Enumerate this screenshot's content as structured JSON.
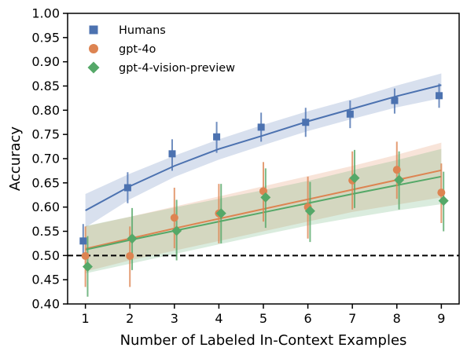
{
  "chart_data": {
    "type": "scatter",
    "xlabel": "Number of Labeled In-Context Examples",
    "ylabel": "Accuracy",
    "xlim": [
      0.6,
      9.4
    ],
    "ylim": [
      0.4,
      1.0
    ],
    "x_ticks": [
      1,
      2,
      3,
      4,
      5,
      6,
      7,
      8,
      9
    ],
    "y_ticks": [
      0.4,
      0.45,
      0.5,
      0.55,
      0.6,
      0.65,
      0.7,
      0.75,
      0.8,
      0.85,
      0.9,
      0.95,
      1.0
    ],
    "y_tick_labels": [
      "0.40",
      "0.45",
      "0.50",
      "0.55",
      "0.60",
      "0.65",
      "0.70",
      "0.75",
      "0.80",
      "0.85",
      "0.90",
      "0.95",
      "1.00"
    ],
    "x_tick_labels": [
      "1",
      "2",
      "3",
      "4",
      "5",
      "6",
      "7",
      "8",
      "9"
    ],
    "grid": false,
    "legend_position": "top-left",
    "reference_line": {
      "y": 0.5,
      "style": "dashed",
      "color": "#000000"
    },
    "series": [
      {
        "name": "Humans",
        "marker": "square",
        "color": "#4c72b0",
        "x": [
          1,
          2,
          3,
          4,
          5,
          6,
          7,
          8,
          9
        ],
        "y": [
          0.53,
          0.64,
          0.71,
          0.745,
          0.765,
          0.775,
          0.792,
          0.82,
          0.83
        ],
        "err_low": [
          0.495,
          0.608,
          0.675,
          0.712,
          0.735,
          0.745,
          0.763,
          0.793,
          0.805
        ],
        "err_high": [
          0.565,
          0.672,
          0.74,
          0.776,
          0.795,
          0.805,
          0.82,
          0.845,
          0.855
        ],
        "fit": [
          0.593,
          0.643,
          0.685,
          0.72,
          0.748,
          0.777,
          0.803,
          0.829,
          0.852
        ],
        "band_low": [
          0.558,
          0.616,
          0.662,
          0.698,
          0.728,
          0.757,
          0.782,
          0.806,
          0.825
        ],
        "band_high": [
          0.627,
          0.669,
          0.706,
          0.74,
          0.77,
          0.798,
          0.823,
          0.851,
          0.876
        ]
      },
      {
        "name": "gpt-4o",
        "marker": "circle",
        "color": "#dd8452",
        "x": [
          1,
          2,
          3,
          4,
          5,
          6,
          7,
          8,
          9
        ],
        "y": [
          0.499,
          0.499,
          0.578,
          0.587,
          0.633,
          0.6,
          0.655,
          0.677,
          0.63
        ],
        "err_low": [
          0.435,
          0.435,
          0.515,
          0.525,
          0.57,
          0.535,
          0.595,
          0.617,
          0.567
        ],
        "err_high": [
          0.56,
          0.56,
          0.64,
          0.648,
          0.693,
          0.663,
          0.715,
          0.735,
          0.69
        ],
        "fit": [
          0.514,
          0.535,
          0.556,
          0.576,
          0.596,
          0.616,
          0.636,
          0.656,
          0.676
        ],
        "band_low": [
          0.467,
          0.49,
          0.51,
          0.53,
          0.55,
          0.57,
          0.59,
          0.605,
          0.62
        ],
        "band_high": [
          0.56,
          0.58,
          0.601,
          0.622,
          0.643,
          0.664,
          0.685,
          0.708,
          0.733
        ]
      },
      {
        "name": "gpt-4-vision-preview",
        "marker": "diamond",
        "color": "#55a868",
        "x": [
          1,
          2,
          3,
          4,
          5,
          6,
          7,
          8,
          9
        ],
        "y": [
          0.477,
          0.535,
          0.551,
          0.587,
          0.62,
          0.592,
          0.66,
          0.656,
          0.613
        ],
        "err_low": [
          0.415,
          0.47,
          0.49,
          0.525,
          0.557,
          0.528,
          0.598,
          0.595,
          0.55
        ],
        "err_high": [
          0.54,
          0.598,
          0.615,
          0.648,
          0.68,
          0.652,
          0.718,
          0.715,
          0.673
        ],
        "fit": [
          0.512,
          0.532,
          0.551,
          0.57,
          0.589,
          0.608,
          0.627,
          0.645,
          0.663
        ],
        "band_low": [
          0.463,
          0.483,
          0.503,
          0.523,
          0.543,
          0.562,
          0.578,
          0.593,
          0.606
        ],
        "band_high": [
          0.561,
          0.58,
          0.599,
          0.617,
          0.635,
          0.654,
          0.676,
          0.697,
          0.72
        ]
      }
    ]
  }
}
